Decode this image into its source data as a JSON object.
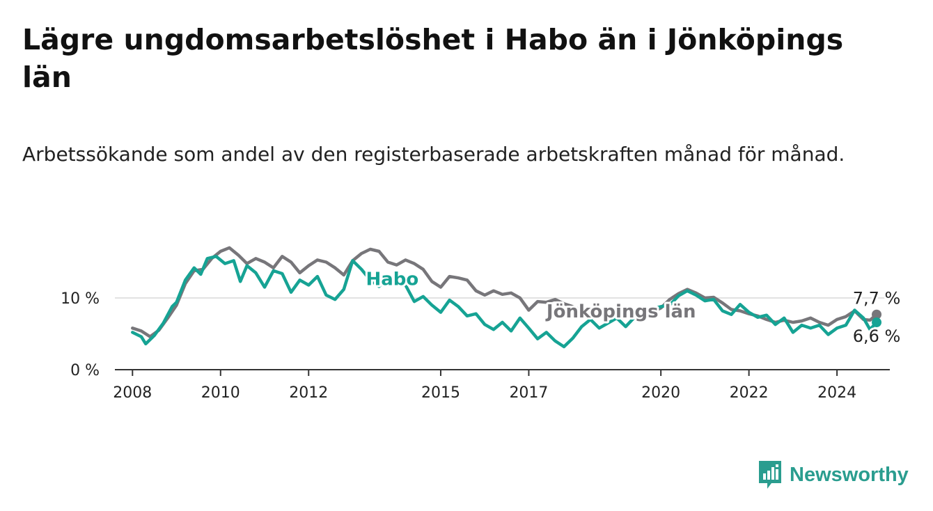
{
  "title": "Lägre ungdomsarbetslöshet i Habo än i Jönköpings län",
  "subtitle": "Arbetssökande som andel av den registerbaserade arbetskraften månad för månad.",
  "brand": {
    "name": "Newsworthy"
  },
  "colors": {
    "habo": "#16a394",
    "lan": "#77767a",
    "grid": "#d9d9d9",
    "axis": "#333333",
    "text": "#222222"
  },
  "chart_data": {
    "type": "line",
    "title": "Lägre ungdomsarbetslöshet i Habo än i Jönköpings län",
    "xlabel": "",
    "ylabel": "",
    "xlim": [
      2007.6,
      2025.2
    ],
    "ylim": [
      0,
      17
    ],
    "x_ticks": [
      2008,
      2010,
      2012,
      2015,
      2017,
      2020,
      2022,
      2024
    ],
    "x_tick_labels": [
      "2008",
      "2010",
      "2012",
      "2015",
      "2017",
      "2020",
      "2022",
      "2024"
    ],
    "y_ticks": [
      0,
      10
    ],
    "y_tick_labels": [
      "0 %",
      "10 %"
    ],
    "series": [
      {
        "name": "Jönköpings län",
        "label": "Jönköpings län",
        "color": "#77767a",
        "end_label": "7,7 %",
        "points": [
          [
            2008.0,
            5.8
          ],
          [
            2008.2,
            5.4
          ],
          [
            2008.4,
            4.6
          ],
          [
            2008.6,
            5.5
          ],
          [
            2008.8,
            7.2
          ],
          [
            2009.0,
            9.0
          ],
          [
            2009.2,
            12.0
          ],
          [
            2009.4,
            13.8
          ],
          [
            2009.6,
            14.0
          ],
          [
            2009.8,
            15.5
          ],
          [
            2010.0,
            16.5
          ],
          [
            2010.2,
            17.0
          ],
          [
            2010.4,
            16.0
          ],
          [
            2010.6,
            14.8
          ],
          [
            2010.8,
            15.5
          ],
          [
            2011.0,
            15.0
          ],
          [
            2011.2,
            14.2
          ],
          [
            2011.4,
            15.8
          ],
          [
            2011.6,
            15.0
          ],
          [
            2011.8,
            13.5
          ],
          [
            2012.0,
            14.5
          ],
          [
            2012.2,
            15.3
          ],
          [
            2012.4,
            15.0
          ],
          [
            2012.6,
            14.2
          ],
          [
            2012.8,
            13.2
          ],
          [
            2013.0,
            15.2
          ],
          [
            2013.2,
            16.2
          ],
          [
            2013.4,
            16.8
          ],
          [
            2013.6,
            16.5
          ],
          [
            2013.8,
            15.0
          ],
          [
            2014.0,
            14.6
          ],
          [
            2014.2,
            15.3
          ],
          [
            2014.4,
            14.8
          ],
          [
            2014.6,
            14.0
          ],
          [
            2014.8,
            12.3
          ],
          [
            2015.0,
            11.5
          ],
          [
            2015.2,
            13.0
          ],
          [
            2015.4,
            12.8
          ],
          [
            2015.6,
            12.5
          ],
          [
            2015.8,
            11.0
          ],
          [
            2016.0,
            10.4
          ],
          [
            2016.2,
            11.0
          ],
          [
            2016.4,
            10.5
          ],
          [
            2016.6,
            10.7
          ],
          [
            2016.8,
            10.0
          ],
          [
            2017.0,
            8.3
          ],
          [
            2017.2,
            9.5
          ],
          [
            2017.4,
            9.4
          ],
          [
            2017.6,
            9.8
          ],
          [
            2017.8,
            9.2
          ],
          [
            2018.0,
            8.8
          ],
          [
            2018.2,
            8.3
          ],
          [
            2018.4,
            8.6
          ],
          [
            2018.6,
            8.0
          ],
          [
            2018.8,
            7.8
          ],
          [
            2019.0,
            8.2
          ],
          [
            2019.2,
            7.6
          ],
          [
            2019.4,
            8.0
          ],
          [
            2019.6,
            7.5
          ],
          [
            2019.8,
            8.0
          ],
          [
            2020.0,
            8.6
          ],
          [
            2020.2,
            9.8
          ],
          [
            2020.4,
            10.6
          ],
          [
            2020.6,
            11.2
          ],
          [
            2020.8,
            10.7
          ],
          [
            2021.0,
            10.0
          ],
          [
            2021.2,
            10.1
          ],
          [
            2021.4,
            9.3
          ],
          [
            2021.6,
            8.4
          ],
          [
            2021.8,
            8.2
          ],
          [
            2022.0,
            7.8
          ],
          [
            2022.2,
            7.5
          ],
          [
            2022.4,
            7.0
          ],
          [
            2022.6,
            6.6
          ],
          [
            2022.8,
            6.9
          ],
          [
            2023.0,
            6.6
          ],
          [
            2023.2,
            6.8
          ],
          [
            2023.4,
            7.2
          ],
          [
            2023.6,
            6.6
          ],
          [
            2023.8,
            6.2
          ],
          [
            2024.0,
            7.0
          ],
          [
            2024.2,
            7.4
          ],
          [
            2024.4,
            8.2
          ],
          [
            2024.6,
            7.0
          ],
          [
            2024.75,
            6.9
          ],
          [
            2024.9,
            7.7
          ]
        ]
      },
      {
        "name": "Habo",
        "label": "Habo",
        "color": "#16a394",
        "end_label": "6,6 %",
        "points": [
          [
            2008.0,
            5.2
          ],
          [
            2008.2,
            4.6
          ],
          [
            2008.3,
            3.6
          ],
          [
            2008.5,
            4.8
          ],
          [
            2008.7,
            6.5
          ],
          [
            2008.9,
            8.8
          ],
          [
            2009.0,
            9.4
          ],
          [
            2009.2,
            12.5
          ],
          [
            2009.4,
            14.2
          ],
          [
            2009.55,
            13.3
          ],
          [
            2009.7,
            15.5
          ],
          [
            2009.9,
            15.8
          ],
          [
            2010.1,
            14.8
          ],
          [
            2010.3,
            15.2
          ],
          [
            2010.45,
            12.3
          ],
          [
            2010.6,
            14.5
          ],
          [
            2010.8,
            13.5
          ],
          [
            2011.0,
            11.5
          ],
          [
            2011.2,
            13.8
          ],
          [
            2011.4,
            13.4
          ],
          [
            2011.6,
            10.8
          ],
          [
            2011.8,
            12.5
          ],
          [
            2012.0,
            11.8
          ],
          [
            2012.2,
            13.0
          ],
          [
            2012.4,
            10.4
          ],
          [
            2012.6,
            9.8
          ],
          [
            2012.8,
            11.2
          ],
          [
            2013.0,
            15.2
          ],
          [
            2013.2,
            14.0
          ],
          [
            2013.4,
            12.5
          ],
          [
            2013.6,
            11.6
          ],
          [
            2013.8,
            13.0
          ],
          [
            2014.0,
            12.8
          ],
          [
            2014.2,
            11.8
          ],
          [
            2014.4,
            9.5
          ],
          [
            2014.6,
            10.2
          ],
          [
            2014.8,
            9.0
          ],
          [
            2015.0,
            8.0
          ],
          [
            2015.2,
            9.7
          ],
          [
            2015.4,
            8.8
          ],
          [
            2015.6,
            7.5
          ],
          [
            2015.8,
            7.8
          ],
          [
            2016.0,
            6.3
          ],
          [
            2016.2,
            5.6
          ],
          [
            2016.4,
            6.6
          ],
          [
            2016.6,
            5.4
          ],
          [
            2016.8,
            7.2
          ],
          [
            2017.0,
            5.8
          ],
          [
            2017.2,
            4.3
          ],
          [
            2017.4,
            5.2
          ],
          [
            2017.6,
            4.0
          ],
          [
            2017.8,
            3.2
          ],
          [
            2018.0,
            4.4
          ],
          [
            2018.2,
            6.0
          ],
          [
            2018.4,
            7.0
          ],
          [
            2018.6,
            5.8
          ],
          [
            2018.8,
            6.5
          ],
          [
            2019.0,
            7.2
          ],
          [
            2019.2,
            6.0
          ],
          [
            2019.4,
            7.3
          ],
          [
            2019.6,
            8.4
          ],
          [
            2019.8,
            8.5
          ],
          [
            2020.0,
            8.8
          ],
          [
            2020.2,
            9.0
          ],
          [
            2020.4,
            10.3
          ],
          [
            2020.6,
            11.0
          ],
          [
            2020.8,
            10.4
          ],
          [
            2021.0,
            9.6
          ],
          [
            2021.2,
            9.8
          ],
          [
            2021.4,
            8.2
          ],
          [
            2021.6,
            7.7
          ],
          [
            2021.8,
            9.1
          ],
          [
            2022.0,
            8.0
          ],
          [
            2022.2,
            7.3
          ],
          [
            2022.4,
            7.6
          ],
          [
            2022.6,
            6.3
          ],
          [
            2022.8,
            7.2
          ],
          [
            2023.0,
            5.2
          ],
          [
            2023.2,
            6.2
          ],
          [
            2023.4,
            5.8
          ],
          [
            2023.6,
            6.2
          ],
          [
            2023.8,
            4.9
          ],
          [
            2024.0,
            5.8
          ],
          [
            2024.2,
            6.2
          ],
          [
            2024.4,
            8.3
          ],
          [
            2024.6,
            7.2
          ],
          [
            2024.75,
            5.6
          ],
          [
            2024.9,
            6.6
          ]
        ]
      }
    ],
    "legend": "direct labels on lines"
  }
}
